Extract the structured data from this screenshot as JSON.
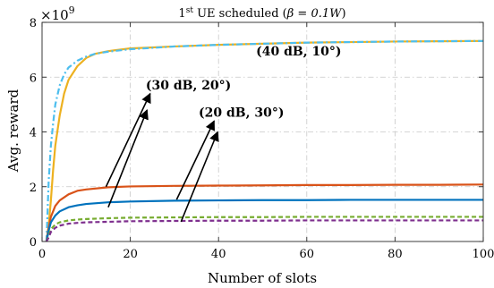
{
  "chart_data": {
    "type": "line",
    "title": {
      "ordinal": "1",
      "ordinal_suffix": "st",
      "text": " UE scheduled (",
      "beta_expr": "β = 0.1",
      "beta_unit": "W",
      "close": ")"
    },
    "xlabel": "Number of slots",
    "ylabel": "Avg. reward",
    "y_exponent": "×10",
    "y_exponent_power": "9",
    "xlim": [
      0,
      100
    ],
    "ylim": [
      0,
      8000000000.0
    ],
    "xticks": [
      0,
      20,
      40,
      60,
      80,
      100
    ],
    "yticks": [
      0,
      2,
      4,
      6,
      8
    ],
    "grid": true,
    "series": [
      {
        "color": "#EDB120",
        "style": "solid",
        "x": [
          1,
          1.5,
          2,
          2.5,
          3,
          4,
          5,
          6,
          8,
          10,
          12,
          15,
          20,
          30,
          40,
          50,
          60,
          70,
          80,
          90,
          100
        ],
        "y": [
          0,
          600000000.0,
          1500000000.0,
          2600000000.0,
          3500000000.0,
          4600000000.0,
          5400000000.0,
          5900000000.0,
          6400000000.0,
          6700000000.0,
          6850000000.0,
          6950000000.0,
          7050000000.0,
          7120000000.0,
          7180000000.0,
          7220000000.0,
          7260000000.0,
          7280000000.0,
          7300000000.0,
          7310000000.0,
          7320000000.0
        ]
      },
      {
        "color": "#4DBEEE",
        "style": "dashdot",
        "x": [
          1,
          1.5,
          2,
          2.5,
          3,
          4,
          5,
          6,
          8,
          10,
          12,
          15,
          20,
          30,
          40,
          50,
          60,
          70,
          80,
          90,
          100
        ],
        "y": [
          0,
          2200000000.0,
          3500000000.0,
          4300000000.0,
          5000000000.0,
          5700000000.0,
          6100000000.0,
          6350000000.0,
          6600000000.0,
          6750000000.0,
          6850000000.0,
          6930000000.0,
          7020000000.0,
          7120000000.0,
          7180000000.0,
          7220000000.0,
          7260000000.0,
          7280000000.0,
          7300000000.0,
          7310000000.0,
          7320000000.0
        ]
      },
      {
        "color": "#D95319",
        "style": "solid",
        "x": [
          1,
          1.5,
          2,
          3,
          4,
          6,
          8,
          10,
          15,
          20,
          30,
          40,
          50,
          60,
          70,
          80,
          90,
          100
        ],
        "y": [
          0,
          500000000.0,
          900000000.0,
          1300000000.0,
          1500000000.0,
          1720000000.0,
          1850000000.0,
          1900000000.0,
          1980000000.0,
          2010000000.0,
          2030000000.0,
          2040000000.0,
          2050000000.0,
          2060000000.0,
          2060000000.0,
          2070000000.0,
          2070000000.0,
          2080000000.0
        ]
      },
      {
        "color": "#0072BD",
        "style": "solid",
        "x": [
          1,
          1.5,
          2,
          3,
          4,
          6,
          8,
          10,
          15,
          20,
          30,
          40,
          50,
          60,
          70,
          80,
          90,
          100
        ],
        "y": [
          0,
          400000000.0,
          700000000.0,
          950000000.0,
          1100000000.0,
          1250000000.0,
          1320000000.0,
          1370000000.0,
          1430000000.0,
          1460000000.0,
          1490000000.0,
          1500000000.0,
          1510000000.0,
          1510000000.0,
          1520000000.0,
          1520000000.0,
          1520000000.0,
          1520000000.0
        ]
      },
      {
        "color": "#77AC30",
        "style": "dashed",
        "x": [
          1,
          1.5,
          2,
          3,
          4,
          6,
          8,
          10,
          15,
          20,
          30,
          40,
          50,
          60,
          70,
          80,
          90,
          100
        ],
        "y": [
          0,
          200000000.0,
          450000000.0,
          620000000.0,
          700000000.0,
          770000000.0,
          800000000.0,
          820000000.0,
          850000000.0,
          870000000.0,
          880000000.0,
          890000000.0,
          890000000.0,
          900000000.0,
          900000000.0,
          900000000.0,
          900000000.0,
          900000000.0
        ]
      },
      {
        "color": "#7E2F8E",
        "style": "dashed",
        "x": [
          1,
          1.5,
          2,
          3,
          4,
          6,
          8,
          10,
          15,
          20,
          30,
          40,
          50,
          60,
          70,
          80,
          90,
          100
        ],
        "y": [
          0,
          150000000.0,
          350000000.0,
          500000000.0,
          580000000.0,
          650000000.0,
          680000000.0,
          700000000.0,
          720000000.0,
          740000000.0,
          750000000.0,
          760000000.0,
          760000000.0,
          770000000.0,
          770000000.0,
          770000000.0,
          770000000.0,
          770000000.0
        ]
      }
    ],
    "annotations": [
      {
        "text": "(40 dB, 10°)",
        "x": 48.5,
        "y": 6800000000.0
      },
      {
        "text": "(30 dB, 20°)",
        "x": 23.5,
        "y": 5550000000.0
      },
      {
        "text": "(20 dB, 30°)",
        "x": 35.5,
        "y": 4550000000.0
      }
    ],
    "arrows": [
      {
        "from": [
          14.5,
          2000000000.0
        ],
        "to": [
          24.5,
          5400000000.0
        ]
      },
      {
        "from": [
          15.0,
          1250000000.0
        ],
        "to": [
          23.8,
          4800000000.0
        ]
      },
      {
        "from": [
          30.5,
          1530000000.0
        ],
        "to": [
          39.0,
          4400000000.0
        ]
      },
      {
        "from": [
          31.5,
          720000000.0
        ],
        "to": [
          39.8,
          4000000000.0
        ]
      }
    ]
  }
}
